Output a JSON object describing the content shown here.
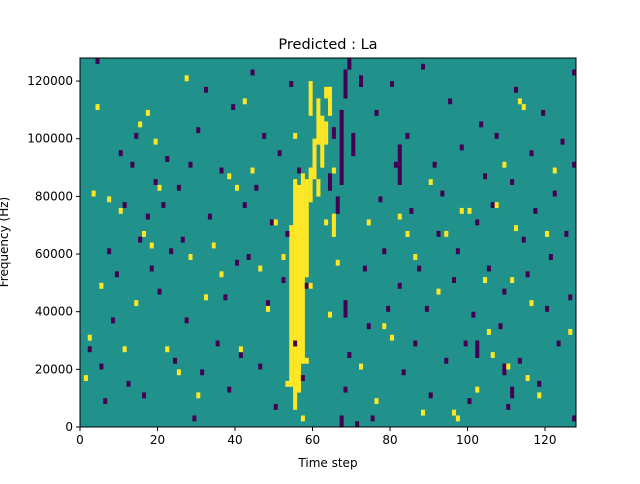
{
  "chart_data": {
    "type": "heatmap",
    "title": "Predicted : La",
    "xlabel": "Time step",
    "ylabel": "Frequency (Hz)",
    "xlim": [
      0,
      128
    ],
    "ylim": [
      0,
      128000
    ],
    "x_ticks": [
      0,
      20,
      40,
      60,
      80,
      100,
      120
    ],
    "y_ticks": [
      0,
      20000,
      40000,
      60000,
      80000,
      100000,
      120000
    ],
    "x_tick_labels": [
      "0",
      "20",
      "40",
      "60",
      "80",
      "100",
      "120"
    ],
    "y_tick_labels": [
      "0",
      "20000",
      "40000",
      "60000",
      "80000",
      "100000",
      "120000"
    ],
    "columns": 128,
    "rows": 64,
    "row_height_hz": 2000,
    "value_levels": [
      -1,
      0,
      1
    ],
    "colormap": "viridis",
    "level_colors": {
      "low": "#440154",
      "mid": "#21918c",
      "high": "#fde725"
    },
    "background_value": 0,
    "grid": false,
    "legend": "none",
    "high_cells": [
      [
        1,
        8
      ],
      [
        2,
        15
      ],
      [
        3,
        40
      ],
      [
        4,
        55
      ],
      [
        5,
        24
      ],
      [
        7,
        39
      ],
      [
        10,
        37
      ],
      [
        11,
        13
      ],
      [
        14,
        21
      ],
      [
        15,
        52
      ],
      [
        16,
        33
      ],
      [
        17,
        54
      ],
      [
        18,
        31
      ],
      [
        19,
        49
      ],
      [
        20,
        41
      ],
      [
        22,
        13
      ],
      [
        25,
        9
      ],
      [
        27,
        60
      ],
      [
        28,
        29
      ],
      [
        30,
        5
      ],
      [
        32,
        22
      ],
      [
        34,
        31
      ],
      [
        36,
        26
      ],
      [
        38,
        43
      ],
      [
        40,
        41
      ],
      [
        41,
        13
      ],
      [
        42,
        56
      ],
      [
        44,
        44
      ],
      [
        46,
        27
      ],
      [
        48,
        20
      ],
      [
        50,
        35
      ],
      [
        52,
        29
      ],
      [
        53,
        7
      ],
      [
        55,
        50
      ],
      [
        56,
        38
      ],
      [
        57,
        1
      ],
      [
        58,
        11
      ],
      [
        59,
        24
      ],
      [
        60,
        46
      ],
      [
        61,
        40
      ],
      [
        62,
        53
      ],
      [
        63,
        35
      ],
      [
        64,
        19
      ],
      [
        65,
        44
      ],
      [
        66,
        28
      ],
      [
        72,
        10
      ],
      [
        74,
        35
      ],
      [
        76,
        4
      ],
      [
        78,
        17
      ],
      [
        80,
        15
      ],
      [
        82,
        36
      ],
      [
        84,
        33
      ],
      [
        86,
        29
      ],
      [
        88,
        2
      ],
      [
        90,
        42
      ],
      [
        92,
        23
      ],
      [
        94,
        33
      ],
      [
        96,
        2
      ],
      [
        97,
        1
      ],
      [
        98,
        37
      ],
      [
        100,
        37
      ],
      [
        102,
        6
      ],
      [
        104,
        25
      ],
      [
        105,
        16
      ],
      [
        106,
        12
      ],
      [
        107,
        38
      ],
      [
        109,
        45
      ],
      [
        110,
        10
      ],
      [
        111,
        25
      ],
      [
        112,
        34
      ],
      [
        113,
        56
      ],
      [
        114,
        55
      ],
      [
        115,
        8
      ],
      [
        116,
        21
      ],
      [
        118,
        5
      ],
      [
        120,
        33
      ],
      [
        122,
        44
      ],
      [
        126,
        16
      ]
    ],
    "low_cells": [
      [
        2,
        13
      ],
      [
        4,
        63
      ],
      [
        5,
        10
      ],
      [
        6,
        4
      ],
      [
        7,
        30
      ],
      [
        8,
        18
      ],
      [
        9,
        26
      ],
      [
        10,
        47
      ],
      [
        11,
        38
      ],
      [
        12,
        7
      ],
      [
        13,
        45
      ],
      [
        14,
        50
      ],
      [
        15,
        32
      ],
      [
        16,
        5
      ],
      [
        17,
        36
      ],
      [
        18,
        27
      ],
      [
        19,
        42
      ],
      [
        20,
        23
      ],
      [
        21,
        38
      ],
      [
        22,
        46
      ],
      [
        23,
        30
      ],
      [
        24,
        11
      ],
      [
        25,
        41
      ],
      [
        26,
        32
      ],
      [
        27,
        18
      ],
      [
        28,
        45
      ],
      [
        29,
        1
      ],
      [
        30,
        51
      ],
      [
        31,
        9
      ],
      [
        32,
        58
      ],
      [
        33,
        36
      ],
      [
        34,
        31
      ],
      [
        35,
        14
      ],
      [
        36,
        44
      ],
      [
        37,
        22
      ],
      [
        38,
        6
      ],
      [
        39,
        55
      ],
      [
        40,
        28
      ],
      [
        41,
        12
      ],
      [
        42,
        38
      ],
      [
        43,
        29
      ],
      [
        44,
        61
      ],
      [
        45,
        41
      ],
      [
        46,
        10
      ],
      [
        47,
        50
      ],
      [
        48,
        21
      ],
      [
        49,
        35
      ],
      [
        50,
        3
      ],
      [
        51,
        47
      ],
      [
        52,
        25
      ],
      [
        53,
        33
      ],
      [
        54,
        59
      ],
      [
        55,
        14
      ],
      [
        56,
        44
      ],
      [
        57,
        8
      ],
      [
        58,
        24
      ],
      [
        68,
        6
      ],
      [
        69,
        12
      ],
      [
        71,
        0
      ],
      [
        73,
        27
      ],
      [
        74,
        17
      ],
      [
        75,
        1
      ],
      [
        76,
        54
      ],
      [
        77,
        39
      ],
      [
        78,
        30
      ],
      [
        79,
        20
      ],
      [
        80,
        59
      ],
      [
        81,
        45
      ],
      [
        82,
        24
      ],
      [
        83,
        9
      ],
      [
        84,
        50
      ],
      [
        85,
        37
      ],
      [
        86,
        14
      ],
      [
        87,
        27
      ],
      [
        88,
        62
      ],
      [
        89,
        20
      ],
      [
        90,
        5
      ],
      [
        91,
        45
      ],
      [
        92,
        33
      ],
      [
        93,
        40
      ],
      [
        94,
        11
      ],
      [
        95,
        56
      ],
      [
        96,
        25
      ],
      [
        97,
        30
      ],
      [
        98,
        48
      ],
      [
        99,
        14
      ],
      [
        100,
        4
      ],
      [
        101,
        19
      ],
      [
        102,
        35
      ],
      [
        103,
        52
      ],
      [
        104,
        43
      ],
      [
        105,
        27
      ],
      [
        106,
        38
      ],
      [
        107,
        50
      ],
      [
        108,
        17
      ],
      [
        109,
        23
      ],
      [
        110,
        3
      ],
      [
        111,
        42
      ],
      [
        112,
        58
      ],
      [
        113,
        11
      ],
      [
        114,
        32
      ],
      [
        115,
        26
      ],
      [
        116,
        47
      ],
      [
        117,
        37
      ],
      [
        118,
        7
      ],
      [
        119,
        54
      ],
      [
        120,
        20
      ],
      [
        121,
        29
      ],
      [
        122,
        40
      ],
      [
        123,
        14
      ],
      [
        124,
        49
      ],
      [
        125,
        33
      ],
      [
        126,
        22
      ],
      [
        127,
        45
      ],
      [
        127,
        1
      ],
      [
        127,
        61
      ]
    ],
    "low_runs": [
      [
        67,
        0,
        2
      ],
      [
        68,
        19,
        3
      ],
      [
        67,
        42,
        13
      ],
      [
        68,
        57,
        5
      ],
      [
        69,
        62,
        2
      ],
      [
        64,
        41,
        3
      ],
      [
        65,
        50,
        2
      ],
      [
        66,
        37,
        3
      ],
      [
        70,
        47,
        4
      ],
      [
        72,
        59,
        2
      ],
      [
        73,
        64,
        1
      ],
      [
        82,
        42,
        7
      ],
      [
        102,
        12,
        3
      ],
      [
        109,
        9,
        2
      ],
      [
        111,
        5,
        2
      ]
    ],
    "high_runs": [
      [
        54,
        7,
        28
      ],
      [
        55,
        3,
        40
      ],
      [
        56,
        6,
        36
      ],
      [
        57,
        11,
        33
      ],
      [
        58,
        26,
        17
      ],
      [
        59,
        39,
        6
      ],
      [
        60,
        43,
        7
      ],
      [
        61,
        49,
        8
      ],
      [
        62,
        45,
        8
      ],
      [
        63,
        57,
        2
      ],
      [
        59,
        54,
        6
      ],
      [
        61,
        40,
        3
      ],
      [
        63,
        49,
        4
      ],
      [
        64,
        54,
        5
      ],
      [
        65,
        33,
        4
      ]
    ]
  }
}
